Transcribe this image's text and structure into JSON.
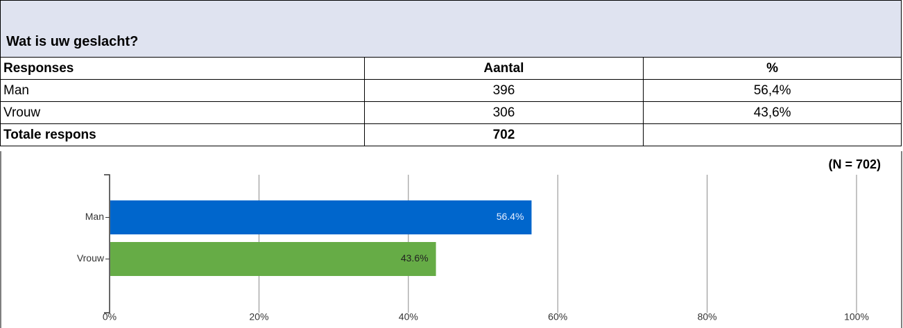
{
  "header": {
    "title": "Wat is uw geslacht?"
  },
  "table": {
    "columns": [
      "Responses",
      "Aantal",
      "%"
    ],
    "rows": [
      [
        "Man",
        396,
        "56,4%"
      ],
      [
        "Vrouw",
        306,
        "43,6%"
      ],
      [
        "Totale respons",
        702,
        ""
      ]
    ]
  },
  "chart_data": {
    "type": "bar",
    "orientation": "horizontal",
    "categories": [
      "Man",
      "Vrouw"
    ],
    "values": [
      56.4,
      43.6
    ],
    "value_labels": [
      "56.4%",
      "43.6%"
    ],
    "colors": [
      "#0066cc",
      "#66ac46"
    ],
    "xlim": [
      0,
      100
    ],
    "xticks": [
      {
        "value": 0,
        "label": "0%"
      },
      {
        "value": 20,
        "label": "20%"
      },
      {
        "value": 40,
        "label": "40%"
      },
      {
        "value": 60,
        "label": "60%"
      },
      {
        "value": 80,
        "label": "80%"
      },
      {
        "value": 100,
        "label": "100%"
      }
    ],
    "grid": true,
    "annotation": "(N = 702)"
  }
}
